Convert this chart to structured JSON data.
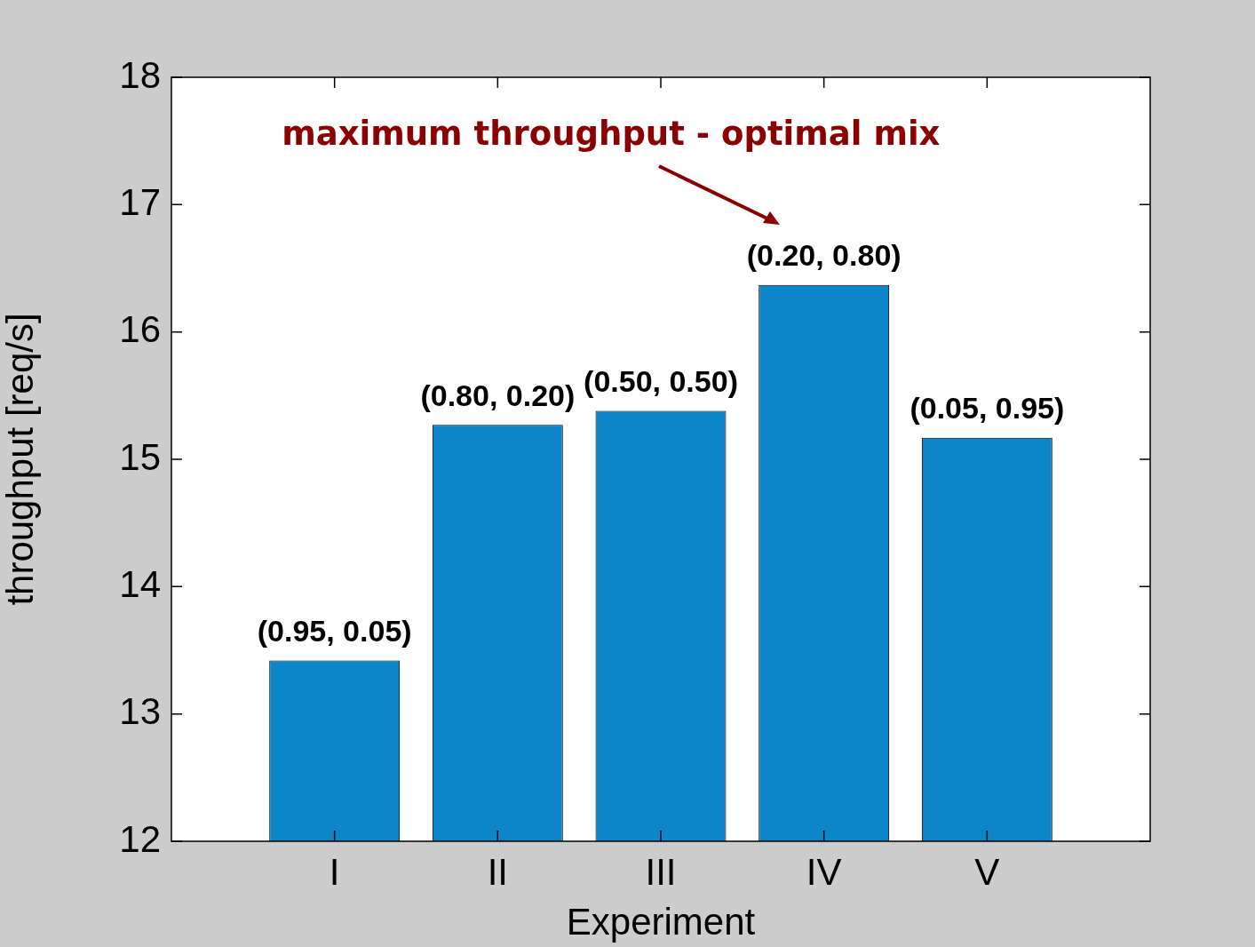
{
  "chart_data": {
    "type": "bar",
    "categories": [
      "I",
      "II",
      "III",
      "IV",
      "V"
    ],
    "values": [
      13.42,
      15.27,
      15.38,
      16.37,
      15.17
    ],
    "value_labels": [
      "(0.95, 0.05)",
      "(0.80, 0.20)",
      "(0.50, 0.50)",
      "(0.20, 0.80)",
      "(0.05, 0.95)"
    ],
    "color": "#0c86c8",
    "xlabel": "Experiment",
    "ylabel": "throughput [req/s]",
    "ylim": [
      12,
      18
    ],
    "yticks": [
      12,
      13,
      14,
      15,
      16,
      17,
      18
    ],
    "annotations": [
      "maximum throughput - optimal mix"
    ],
    "legend": false
  }
}
